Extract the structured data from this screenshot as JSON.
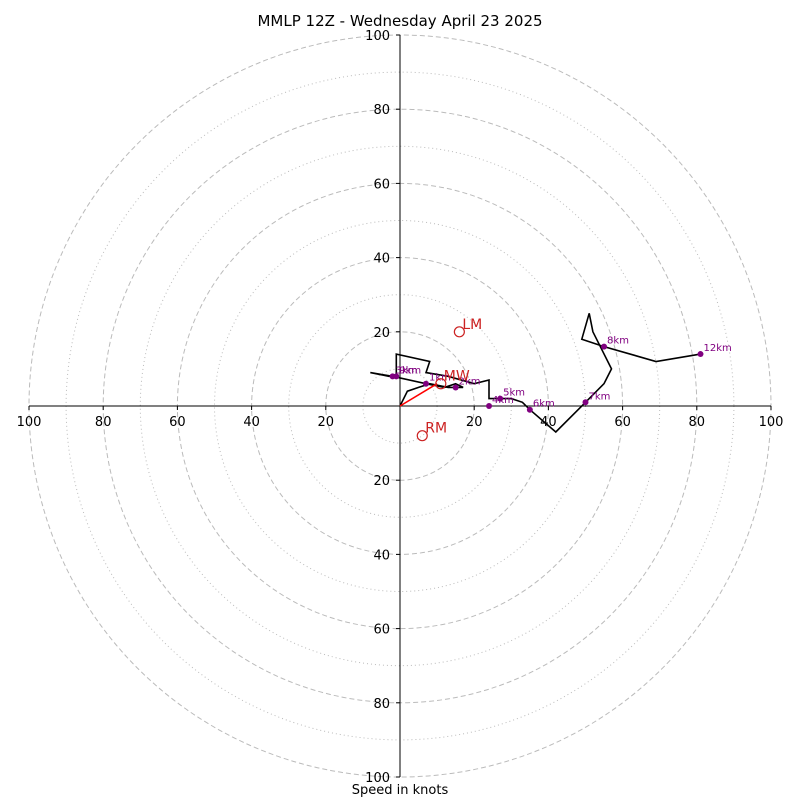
{
  "chart_data": {
    "type": "scatter",
    "title": "MMLP 12Z - Wednesday April 23 2025",
    "xlabel": "Speed in knots",
    "ylabel": "",
    "xlim": [
      -100,
      100
    ],
    "ylim": [
      -100,
      100
    ],
    "rings_major": [
      20,
      40,
      60,
      80,
      100
    ],
    "rings_minor": [
      10,
      30,
      50,
      70,
      90
    ],
    "tick_labels": [
      "20",
      "40",
      "60",
      "80",
      "100"
    ],
    "grid": true,
    "hodograph_trace": [
      [
        0,
        0
      ],
      [
        2,
        4
      ],
      [
        5,
        5
      ],
      [
        8,
        6
      ],
      [
        13,
        5
      ],
      [
        17,
        5
      ],
      [
        15,
        6
      ],
      [
        12,
        5
      ],
      [
        7,
        6
      ],
      [
        -2,
        8
      ],
      [
        -8,
        9
      ],
      [
        -3,
        8
      ],
      [
        -1,
        8
      ],
      [
        -1,
        14
      ],
      [
        8,
        12
      ],
      [
        7,
        9
      ],
      [
        13,
        8
      ],
      [
        20,
        6
      ],
      [
        24,
        7
      ],
      [
        24,
        2
      ],
      [
        26,
        2
      ],
      [
        27,
        2
      ],
      [
        30,
        2
      ],
      [
        33,
        1
      ],
      [
        35,
        -1
      ],
      [
        42,
        -7
      ],
      [
        50,
        1
      ],
      [
        55,
        6
      ],
      [
        57,
        10
      ],
      [
        52,
        20
      ],
      [
        51,
        25
      ],
      [
        49,
        18
      ],
      [
        55,
        16
      ],
      [
        69,
        12
      ],
      [
        81,
        14
      ]
    ],
    "height_labels": [
      {
        "label": "1km",
        "x": 7,
        "y": 6
      },
      {
        "label": "2km",
        "x": 15,
        "y": 5
      },
      {
        "label": "3km",
        "x": -2,
        "y": 8
      },
      {
        "label": "9km",
        "x": -1,
        "y": 8
      },
      {
        "label": "4km",
        "x": 24,
        "y": 0
      },
      {
        "label": "5km",
        "x": 27,
        "y": 2
      },
      {
        "label": "6km",
        "x": 35,
        "y": -1
      },
      {
        "label": "7km",
        "x": 50,
        "y": 1
      },
      {
        "label": "8km",
        "x": 55,
        "y": 16
      },
      {
        "label": "12km",
        "x": 81,
        "y": 14
      }
    ],
    "mean_wind_line": [
      [
        0,
        0
      ],
      [
        10,
        6
      ]
    ],
    "storm_motions": [
      {
        "label": "LM",
        "x": 16,
        "y": 20
      },
      {
        "label": "MW",
        "x": 11,
        "y": 6
      },
      {
        "label": "RM",
        "x": 6,
        "y": -8
      }
    ],
    "colors": {
      "trace": "#000000",
      "height_points": "#800080",
      "storm_motion": "#cc2222",
      "mean_wind_line": "#ff0000",
      "grid": "#bbbbbb",
      "axes": "#000000"
    }
  }
}
